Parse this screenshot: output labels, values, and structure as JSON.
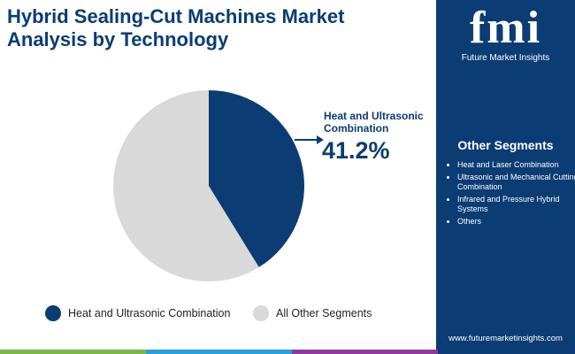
{
  "chart_data": {
    "type": "pie",
    "title": "Hybrid Sealing-Cut Machines Market Analysis by Technology",
    "categories": [
      "Heat and Ultrasonic Combination",
      "All Other Segments"
    ],
    "values": [
      41.2,
      58.8
    ],
    "value_labels": [
      "41.2%",
      null
    ],
    "colors": [
      "#0b3c73",
      "#d9d9d9"
    ]
  },
  "sidebar": {
    "logo": "fmi",
    "brand": "Future Market Insights",
    "heading": "Other Segments",
    "items": [
      "Heat and Laser Combination",
      "Ultrasonic and Mechanical Cutting Combination",
      "Infrared and Pressure Hybrid Systems",
      "Others"
    ],
    "url": "www.futuremarketinsights.com"
  }
}
